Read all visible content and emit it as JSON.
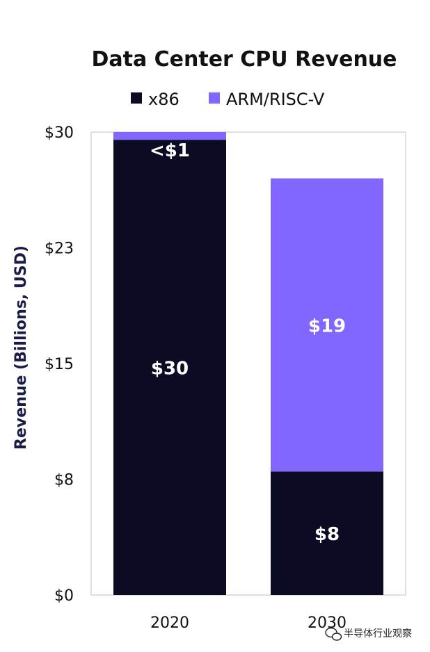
{
  "chart_data": {
    "type": "bar",
    "stacked": true,
    "title": "Data Center CPU Revenue",
    "xlabel": "",
    "ylabel": "Revenue (Billions, USD)",
    "categories": [
      "2020",
      "2030"
    ],
    "series": [
      {
        "name": "x86",
        "color": "#0b0b24",
        "values": [
          29.5,
          8
        ],
        "labels": [
          "$30",
          "$8"
        ]
      },
      {
        "name": "ARM/RISC-V",
        "color": "#8266ff",
        "values": [
          0.5,
          19
        ],
        "labels": [
          "<$1",
          "$19"
        ]
      }
    ],
    "ylim": [
      0,
      30
    ],
    "yticks": [
      0,
      7.5,
      15,
      22.5,
      30
    ],
    "ytick_labels": [
      "$0",
      "$8",
      "$15",
      "$23",
      "$30"
    ],
    "grid": false,
    "legend_position": "top"
  },
  "watermark": {
    "text": "半导体行业观察",
    "icon": "wechat-icon"
  }
}
